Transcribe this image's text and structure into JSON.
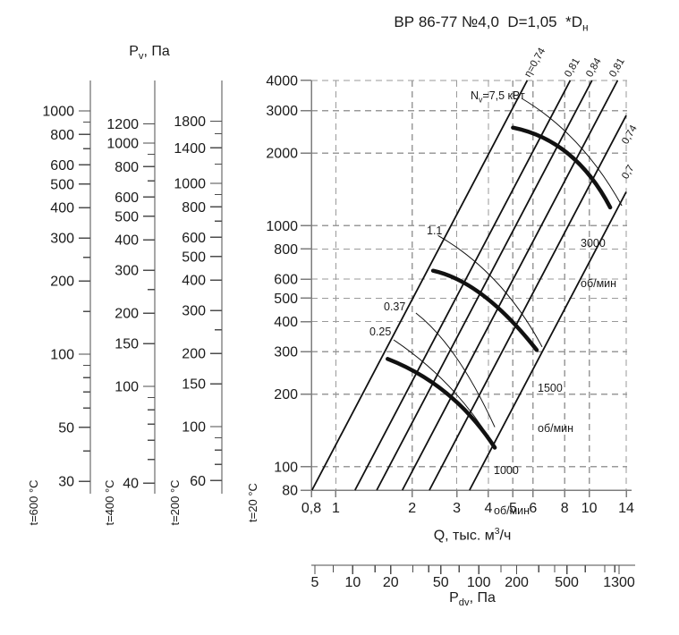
{
  "title": {
    "text": "ВР 86-77 №4,0  D=1,05  *D",
    "subscript": "н"
  },
  "chart_data": {
    "type": "line",
    "main_plot": {
      "x_axis": {
        "title_pre": "Q, тыс. м",
        "title_sup": "3",
        "title_post": "/ч",
        "scale": "log",
        "range": [
          0.8,
          14
        ],
        "tick_values": [
          0.8,
          1,
          2,
          3,
          4,
          5,
          6,
          8,
          10,
          14
        ],
        "tick_labels": [
          "0,8",
          "1",
          "2",
          "3",
          "4",
          "5",
          "6",
          "8",
          "10",
          "14"
        ],
        "grid_values": [
          1,
          2,
          3,
          4,
          5,
          6,
          8,
          10,
          14
        ]
      },
      "y_axis": {
        "scale": "log",
        "range": [
          80,
          4000
        ],
        "tick_values": [
          4000,
          3000,
          2000,
          1000,
          800,
          600,
          500,
          400,
          300,
          200,
          100,
          80
        ],
        "tick_labels": [
          "4000",
          "3000",
          "2000",
          "1000",
          "800",
          "600",
          "500",
          "400",
          "300",
          "200",
          "100",
          "80"
        ],
        "grid_values": [
          100,
          200,
          300,
          400,
          500,
          600,
          800,
          1000,
          2000,
          3000,
          4000
        ],
        "temperature_label": "t=20 °C"
      },
      "grid": "dashed",
      "efficiency_lines": [
        {
          "label": "η=0,74",
          "q_at_p80": 0.805,
          "label_side": "top"
        },
        {
          "label": "0,81",
          "q_at_p80": 1.19,
          "label_side": "top"
        },
        {
          "label": "0,84",
          "q_at_p80": 1.45,
          "label_side": "top"
        },
        {
          "label": "0,81",
          "q_at_p80": 1.83,
          "label_side": "top"
        },
        {
          "label": "0,74",
          "q_at_p80": 2.34,
          "label_side": "right"
        },
        {
          "label": "0,7",
          "q_at_p80": 3.37,
          "label_side": "right"
        }
      ],
      "fan_curves": [
        {
          "speed_value": "1000",
          "speed_unit": "об/мин",
          "q": [
            1.6,
            2.92,
            4.24
          ],
          "p": [
            280,
            219,
            120
          ]
        },
        {
          "speed_value": "1500",
          "speed_unit": "об/мин",
          "q": [
            2.42,
            3.81,
            6.2
          ],
          "p": [
            650,
            585,
            305
          ]
        },
        {
          "speed_value": "3000",
          "speed_unit": "об/мин",
          "q": [
            5.0,
            8.8,
            12.1
          ],
          "p": [
            2550,
            2260,
            1190
          ]
        }
      ],
      "power_curves": [
        {
          "label_pre": "N",
          "label_sub": "v",
          "label_post": "=7,5 кВт",
          "power_kw": 7.5,
          "q": [
            5.41,
            9.4,
            13.45
          ],
          "p": [
            3370,
            2390,
            1210
          ]
        },
        {
          "label": "1.1",
          "power_kw": 1.1,
          "q": [
            2.53,
            4.55,
            6.52
          ],
          "p": [
            910,
            638,
            314
          ]
        },
        {
          "label": "0.37",
          "power_kw": 0.37,
          "q": [
            2.07,
            3.02,
            4.24
          ],
          "p": [
            434,
            319,
            146
          ]
        },
        {
          "label": "0.25",
          "power_kw": 0.25,
          "q": [
            1.69,
            2.9,
            4.08
          ],
          "p": [
            336,
            230,
            129
          ]
        }
      ]
    },
    "aux_scales": {
      "title_pre": "P",
      "title_sub": "v",
      "title_post": ", Па",
      "scale": "log",
      "scales": [
        {
          "temperature_label": "t=600 °C",
          "major_ticks": [
            1000,
            800,
            600,
            500,
            400,
            300,
            200,
            100,
            50,
            30
          ],
          "minor_ticks": [
            900,
            700,
            250,
            150,
            90,
            80,
            70,
            60,
            40
          ]
        },
        {
          "temperature_label": "t=400 °C",
          "major_ticks": [
            1200,
            1000,
            800,
            600,
            500,
            400,
            300,
            200,
            150,
            100,
            40
          ],
          "minor_ticks": [
            900,
            700,
            250,
            90,
            80,
            70,
            60,
            50
          ]
        },
        {
          "temperature_label": "t=200 °C",
          "major_ticks": [
            1800,
            1400,
            1000,
            800,
            600,
            500,
            400,
            300,
            200,
            150,
            100,
            60
          ],
          "minor_ticks": [
            1600,
            1200,
            900,
            700,
            250,
            90,
            80,
            70
          ]
        }
      ]
    },
    "pdv_scale": {
      "title_pre": "P",
      "title_sub": "dv",
      "title_post": ", Па",
      "scale": "log",
      "range": [
        5,
        1300
      ],
      "major_ticks": [
        5,
        10,
        20,
        50,
        100,
        200,
        500,
        1300
      ],
      "minor_ticks": [
        7,
        15,
        30,
        40,
        70,
        150,
        300,
        400,
        700,
        1000,
        1200
      ]
    },
    "colors": {
      "grid": "#9a9a9a",
      "axis": "#7d7d7d",
      "aux_axis": "#4d4d4d",
      "curve": "#111111",
      "text": "#1a1a1a"
    }
  }
}
